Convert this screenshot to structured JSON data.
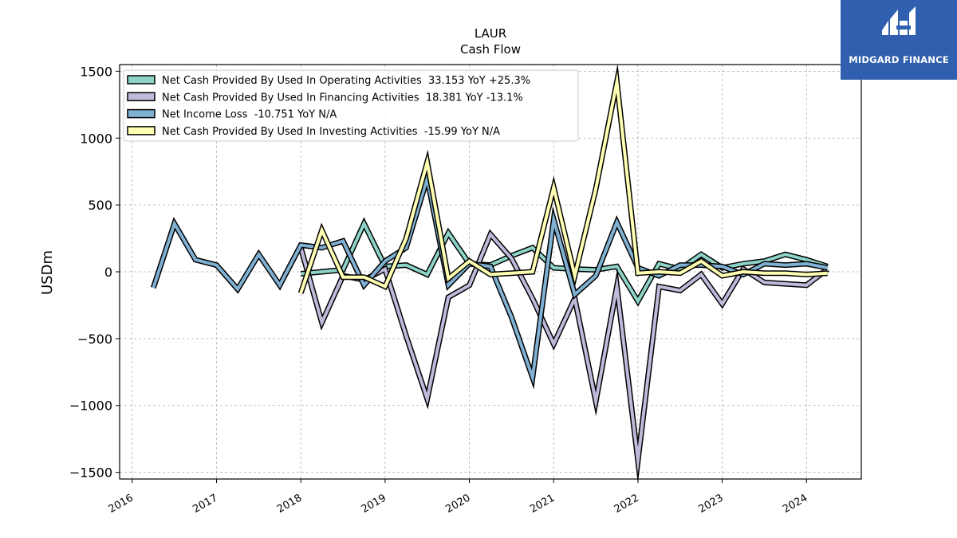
{
  "chart_data": {
    "type": "line",
    "title": "LAUR",
    "subtitle": "Cash Flow",
    "ylabel": "USDm",
    "xlabel": "",
    "xlim": [
      2015.85,
      2024.65
    ],
    "ylim": [
      -1550,
      1550
    ],
    "yticks": [
      -1500,
      -1000,
      -500,
      0,
      500,
      1000,
      1500
    ],
    "ytick_labels": [
      "−1500",
      "−1000",
      "−500",
      "0",
      "500",
      "1000",
      "1500"
    ],
    "xticks": [
      2016,
      2017,
      2018,
      2019,
      2020,
      2021,
      2022,
      2023,
      2024
    ],
    "xtick_labels": [
      "2016",
      "2017",
      "2018",
      "2019",
      "2020",
      "2021",
      "2022",
      "2023",
      "2024"
    ],
    "grid": true,
    "legend_position": "upper-left",
    "series": [
      {
        "name": "Net Cash Provided By Used In Operating Activities  33.153 YoY +25.3%",
        "color": "#8dd3c7",
        "x": [
          2018.0,
          2018.25,
          2018.5,
          2018.75,
          2019.0,
          2019.25,
          2019.5,
          2019.75,
          2020.0,
          2020.25,
          2020.5,
          2020.75,
          2021.0,
          2021.25,
          2021.5,
          2021.75,
          2022.0,
          2022.25,
          2022.5,
          2022.75,
          2023.0,
          2023.25,
          2023.5,
          2023.75,
          2024.0,
          2024.25
        ],
        "y": [
          -15,
          0,
          15,
          360,
          40,
          50,
          -20,
          290,
          60,
          50,
          120,
          180,
          30,
          20,
          15,
          40,
          -220,
          60,
          20,
          130,
          30,
          60,
          80,
          130,
          90,
          40
        ]
      },
      {
        "name": "Net Cash Provided By Used In Financing Activities  18.381 YoY -13.1%",
        "color": "#bebada",
        "x": [
          2018.0,
          2018.25,
          2018.5,
          2018.75,
          2019.0,
          2019.25,
          2019.5,
          2019.75,
          2020.0,
          2020.25,
          2020.5,
          2020.75,
          2021.0,
          2021.25,
          2021.5,
          2021.75,
          2022.0,
          2022.25,
          2022.5,
          2022.75,
          2023.0,
          2023.25,
          2023.5,
          2023.75,
          2024.0,
          2024.25
        ],
        "y": [
          180,
          -380,
          -30,
          -60,
          20,
          -480,
          -950,
          -190,
          -100,
          280,
          100,
          -200,
          -540,
          -200,
          -970,
          -110,
          -1410,
          -110,
          -140,
          -20,
          -240,
          20,
          -80,
          -90,
          -100,
          20
        ]
      },
      {
        "name": "Net Income Loss  -10.751 YoY N/A",
        "color": "#80b1d3",
        "x": [
          2016.25,
          2016.5,
          2016.75,
          2017.0,
          2017.25,
          2017.5,
          2017.75,
          2018.0,
          2018.25,
          2018.5,
          2018.75,
          2019.0,
          2019.25,
          2019.5,
          2019.75,
          2020.0,
          2020.25,
          2020.5,
          2020.75,
          2021.0,
          2021.25,
          2021.5,
          2021.75,
          2022.0,
          2022.25,
          2022.5,
          2022.75,
          2023.0,
          2023.25,
          2023.5,
          2023.75,
          2024.0,
          2024.25
        ],
        "y": [
          -120,
          360,
          90,
          50,
          -130,
          130,
          -100,
          200,
          180,
          230,
          -100,
          80,
          180,
          700,
          -100,
          60,
          40,
          -340,
          -790,
          390,
          -170,
          -30,
          370,
          30,
          -30,
          50,
          50,
          40,
          -20,
          60,
          50,
          60,
          30
        ]
      },
      {
        "name": "Net Cash Provided By Used In Investing Activities  -15.99 YoY N/A",
        "color": "#ffffb3",
        "x": [
          2018.0,
          2018.25,
          2018.5,
          2018.75,
          2019.0,
          2019.25,
          2019.5,
          2019.75,
          2020.0,
          2020.25,
          2020.5,
          2020.75,
          2021.0,
          2021.25,
          2021.5,
          2021.75,
          2022.0,
          2022.25,
          2022.5,
          2022.75,
          2023.0,
          2023.25,
          2023.5,
          2023.75,
          2024.0,
          2024.25
        ],
        "y": [
          -160,
          310,
          -40,
          -40,
          -110,
          250,
          820,
          -50,
          80,
          -20,
          -10,
          0,
          630,
          -30,
          620,
          1420,
          -10,
          0,
          -10,
          80,
          -30,
          0,
          -10,
          -10,
          -20,
          -10
        ]
      }
    ]
  },
  "logo": {
    "text": "MIDGARD FINANCE",
    "bg_color": "#2f5fae"
  }
}
